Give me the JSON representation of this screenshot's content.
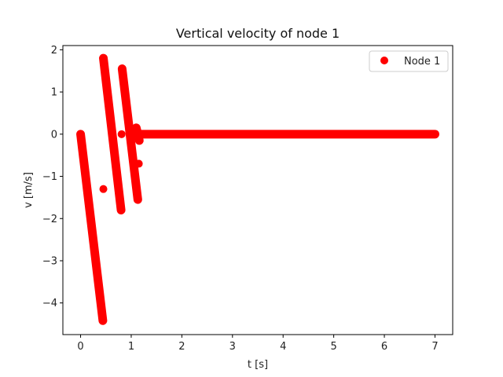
{
  "chart_data": {
    "type": "scatter",
    "title": "Vertical velocity of node 1",
    "xlabel": "t [s]",
    "ylabel": "v [m/s]",
    "xlim": [
      -0.35,
      7.35
    ],
    "ylim": [
      -4.75,
      2.1
    ],
    "xticks": [
      0,
      1,
      2,
      3,
      4,
      5,
      6,
      7
    ],
    "yticks": [
      -4,
      -3,
      -2,
      -1,
      0,
      1,
      2
    ],
    "xtick_labels": [
      "0",
      "1",
      "2",
      "3",
      "4",
      "5",
      "6",
      "7"
    ],
    "ytick_labels": [
      "−4",
      "−3",
      "−2",
      "−1",
      "0",
      "1",
      "2"
    ],
    "grid": false,
    "legend": "top-right",
    "color": "#ff0000",
    "series": [
      {
        "name": "Node 1",
        "segments": [
          {
            "x": [
              0.0,
              0.44
            ],
            "y": [
              0.0,
              -4.42
            ]
          },
          {
            "x": [
              0.45,
              0.8
            ],
            "y": [
              1.8,
              -1.8
            ]
          },
          {
            "x": [
              0.82,
              1.13
            ],
            "y": [
              1.55,
              -1.55
            ]
          },
          {
            "x": [
              1.1,
              1.16
            ],
            "y": [
              0.15,
              -0.15
            ]
          },
          {
            "x": [
              1.15,
              7.0
            ],
            "y": [
              0.0,
              0.0
            ]
          }
        ],
        "points": [
          {
            "x": 0.45,
            "y": -1.3
          },
          {
            "x": 0.81,
            "y": 0.0
          },
          {
            "x": 1.15,
            "y": -0.7
          }
        ]
      }
    ]
  }
}
